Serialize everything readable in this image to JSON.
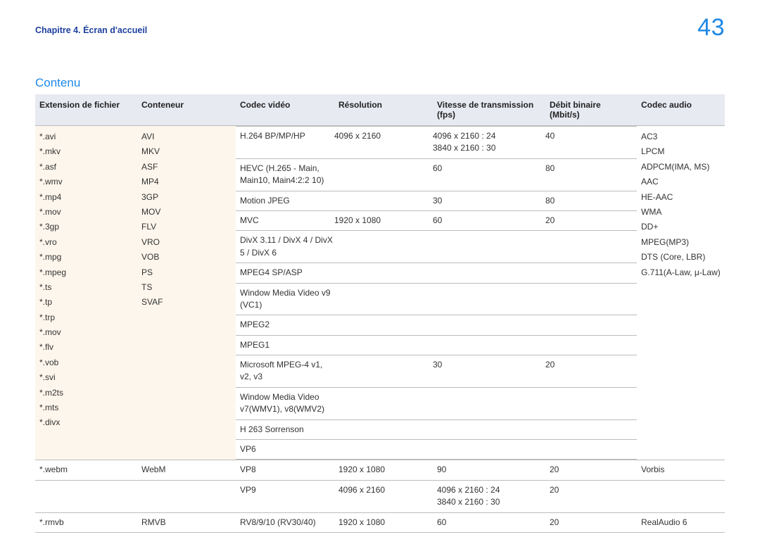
{
  "meta": {
    "chapter_line": "Chapitre 4. Écran d'accueil",
    "page_number": "43",
    "section_title": "Contenu"
  },
  "colors": {
    "accent": "#1e88e5",
    "chapter": "#1e3f9e",
    "header_bg": "#e8eaf2",
    "ext_bg": "#fdf6ec",
    "border": "#bcbcbc",
    "text": "#333333",
    "page_bg": "#ffffff"
  },
  "typography": {
    "base_font": "Segoe UI / Helvetica Neue / Arial",
    "body_size_pt": 9,
    "title_size_pt": 13,
    "pagenum_size_pt": 26,
    "chapter_size_pt": 9.5
  },
  "table": {
    "headers": {
      "extension": "Extension de fichier",
      "container": "Conteneur",
      "video_codec": "Codec vidéo",
      "resolution": "Résolution",
      "fps": "Vitesse de transmission (fps)",
      "bitrate": "Débit binaire (Mbit/s)",
      "audio_codec": "Codec audio"
    },
    "row1": {
      "extensions": [
        "*.avi",
        "*.mkv",
        "*.asf",
        "*.wmv",
        "*.mp4",
        "*.mov",
        "*.3gp",
        "*.vro",
        "*.mpg",
        "*.mpeg",
        "*.ts",
        "*.tp",
        "*.trp",
        "*.mov",
        "*.flv",
        "*.vob",
        "*.svi",
        "*.m2ts",
        "*.mts",
        "*.divx"
      ],
      "containers": [
        "AVI",
        "MKV",
        "ASF",
        "MP4",
        "3GP",
        "MOV",
        "FLV",
        "VRO",
        "VOB",
        "PS",
        "TS",
        "SVAF"
      ],
      "video_codecs": [
        {
          "name": "H.264 BP/MP/HP",
          "res": "4096 x 2160",
          "fps": "4096 x 2160 : 24\n3840 x 2160 : 30",
          "bitrate": "40"
        },
        {
          "name": "HEVC (H.265 - Main, Main10, Main4:2:2 10)",
          "res": "",
          "fps": "60",
          "bitrate": "80"
        },
        {
          "name": "Motion JPEG",
          "res": "",
          "fps": "30",
          "bitrate": "80"
        },
        {
          "name": "MVC",
          "res": "1920 x 1080",
          "fps": "60",
          "bitrate": "20"
        },
        {
          "name": "DivX 3.11 / DivX 4 / DivX 5 / DivX 6",
          "res": "",
          "fps": "",
          "bitrate": ""
        },
        {
          "name": "MPEG4 SP/ASP",
          "res": "",
          "fps": "",
          "bitrate": ""
        },
        {
          "name": "Window Media Video v9 (VC1)",
          "res": "",
          "fps": "",
          "bitrate": ""
        },
        {
          "name": "MPEG2",
          "res": "",
          "fps": "",
          "bitrate": ""
        },
        {
          "name": "MPEG1",
          "res": "",
          "fps": "",
          "bitrate": ""
        },
        {
          "name": "Microsoft MPEG-4 v1, v2, v3",
          "res": "",
          "fps": "30",
          "bitrate": "20"
        },
        {
          "name": "Window Media Video v7(WMV1), v8(WMV2)",
          "res": "",
          "fps": "",
          "bitrate": ""
        },
        {
          "name": "H 263 Sorrenson",
          "res": "",
          "fps": "",
          "bitrate": ""
        },
        {
          "name": "VP6",
          "res": "",
          "fps": "",
          "bitrate": ""
        }
      ],
      "audio_codecs": [
        "AC3",
        "LPCM",
        "ADPCM(IMA, MS)",
        "AAC",
        "HE-AAC",
        "WMA",
        "DD+",
        "MPEG(MP3)",
        "DTS (Core, LBR)",
        "G.711(A-Law, μ-Law)"
      ]
    },
    "row2a": {
      "extension": "*.webm",
      "container": "WebM",
      "video_codec": "VP8",
      "resolution": "1920 x 1080",
      "fps": "90",
      "bitrate": "20",
      "audio_codec": "Vorbis"
    },
    "row2b": {
      "video_codec": "VP9",
      "resolution": "4096 x 2160",
      "fps": "4096 x 2160 : 24\n3840 x 2160 : 30",
      "bitrate": "20"
    },
    "row3": {
      "extension": "*.rmvb",
      "container": "RMVB",
      "video_codec": "RV8/9/10 (RV30/40)",
      "resolution": "1920 x 1080",
      "fps": "60",
      "bitrate": "20",
      "audio_codec": "RealAudio 6"
    }
  }
}
